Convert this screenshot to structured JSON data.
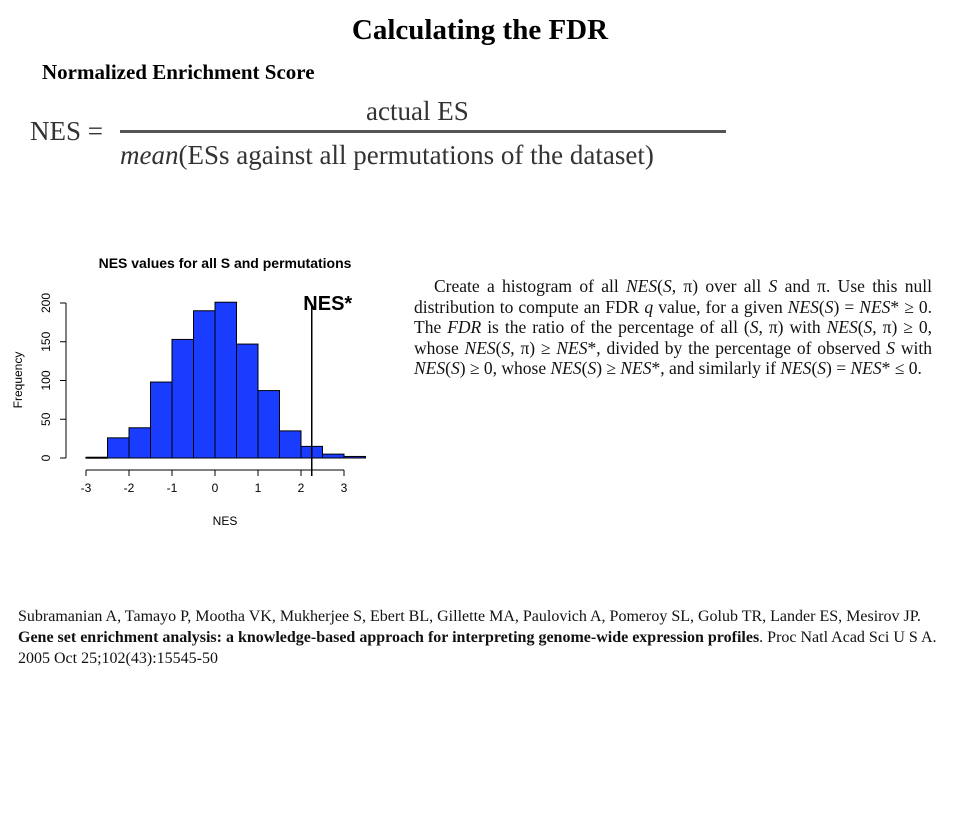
{
  "title": "Calculating the FDR",
  "subtitle": "Normalized Enrichment Score",
  "formula": {
    "lhs": "NES =",
    "numerator": "actual ES",
    "denominator_prefix": "mean",
    "denominator_rest": "(ESs against all permutations of the dataset)"
  },
  "chart_data": {
    "type": "bar",
    "title": "NES values for all S and permutations",
    "xlabel": "NES",
    "ylabel": "Frequency",
    "bin_edges": [
      -3.0,
      -2.5,
      -2.0,
      -1.5,
      -1.0,
      -0.5,
      0.0,
      0.5,
      1.0,
      1.5,
      2.0,
      2.5,
      3.0,
      3.5
    ],
    "values": [
      1,
      26,
      39,
      98,
      153,
      190,
      201,
      147,
      87,
      35,
      15,
      5,
      2
    ],
    "xticks": [
      -3,
      -2,
      -1,
      0,
      1,
      2,
      3
    ],
    "yticks": [
      0,
      50,
      100,
      150,
      200
    ],
    "xlim": [
      -3,
      3.5
    ],
    "ylim": [
      0,
      201
    ],
    "bar_color": "#1a3cff",
    "marker": {
      "label": "NES*",
      "x": 2.25
    }
  },
  "description": {
    "l1": "Create a histogram of all ",
    "i1": "NES",
    "l2": "(",
    "i2": "S",
    "l3": ", π) over all ",
    "i3": "S",
    "l4": " and π. Use this null distribution to compute an FDR ",
    "i4": "q",
    "l5": " value, for a given ",
    "i5": "NES",
    "l6": "(",
    "i6": "S",
    "l7": ") = ",
    "i7": "NES",
    "l8": "* ≥ 0. The ",
    "i8": "FDR",
    "l9": " is the ratio of the percentage of all (",
    "i9": "S",
    "l10": ", π) with ",
    "i10": "NES",
    "l11": "(",
    "i11": "S",
    "l12": ", π) ≥ 0, whose ",
    "i12": "NES",
    "l13": "(",
    "i13": "S",
    "l14": ", π) ≥ ",
    "i14": "NES",
    "l15": "*, divided by the percentage of observed ",
    "i15": "S",
    "l16": " with ",
    "i16": "NES",
    "l17": "(",
    "i17": "S",
    "l18": ") ≥ 0, whose ",
    "i18": "NES",
    "l19": "(",
    "i19": "S",
    "l20": ") ≥ ",
    "i20": "NES",
    "l21": "*, and similarly if ",
    "i21": "NES",
    "l22": "(",
    "i22": "S",
    "l23": ") = ",
    "i23": "NES",
    "l24": "* ≤ 0."
  },
  "citation": {
    "authors": "Subramanian A, Tamayo P, Mootha VK, Mukherjee S, Ebert BL, Gillette MA, Paulovich A, Pomeroy SL, Golub TR, Lander ES, Mesirov JP. ",
    "article_title": "Gene set enrichment analysis: a knowledge-based approach for interpreting genome-wide expression profiles",
    "journal": ". Proc Natl Acad Sci U S A. 2005 Oct 25;102(43):15545-50"
  }
}
